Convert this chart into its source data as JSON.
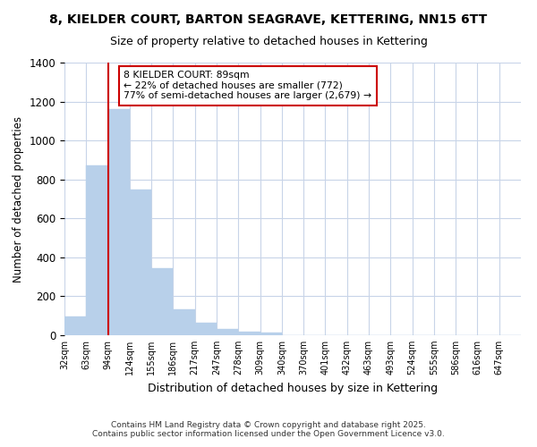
{
  "title_line1": "8, KIELDER COURT, BARTON SEAGRAVE, KETTERING, NN15 6TT",
  "title_line2": "Size of property relative to detached houses in Kettering",
  "xlabel": "Distribution of detached houses by size in Kettering",
  "ylabel": "Number of detached properties",
  "bar_color": "#b8d0ea",
  "bar_edgecolor": "#b8d0ea",
  "vline_color": "#cc0000",
  "vline_x": 1,
  "annotation_text": "8 KIELDER COURT: 89sqm\n← 22% of detached houses are smaller (772)\n77% of semi-detached houses are larger (2,679) →",
  "annotation_box_edgecolor": "#cc0000",
  "annotation_box_facecolor": "#ffffff",
  "categories": [
    "32sqm",
    "63sqm",
    "94sqm",
    "124sqm",
    "155sqm",
    "186sqm",
    "217sqm",
    "247sqm",
    "278sqm",
    "309sqm",
    "340sqm",
    "370sqm",
    "401sqm",
    "432sqm",
    "463sqm",
    "493sqm",
    "524sqm",
    "555sqm",
    "586sqm",
    "616sqm",
    "647sqm"
  ],
  "values": [
    97,
    872,
    1160,
    750,
    345,
    135,
    62,
    30,
    20,
    12,
    0,
    0,
    0,
    0,
    0,
    0,
    0,
    0,
    0,
    0,
    0
  ],
  "ylim": [
    0,
    1400
  ],
  "background_color": "#ffffff",
  "grid_color": "#c8d4e8",
  "footer_line1": "Contains HM Land Registry data © Crown copyright and database right 2025.",
  "footer_line2": "Contains public sector information licensed under the Open Government Licence v3.0."
}
